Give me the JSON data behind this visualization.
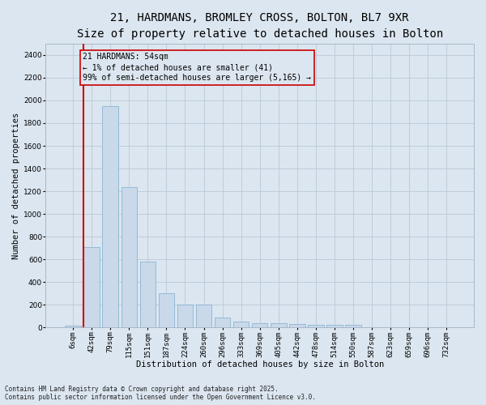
{
  "title_line1": "21, HARDMANS, BROMLEY CROSS, BOLTON, BL7 9XR",
  "title_line2": "Size of property relative to detached houses in Bolton",
  "xlabel": "Distribution of detached houses by size in Bolton",
  "ylabel": "Number of detached properties",
  "categories": [
    "6sqm",
    "42sqm",
    "79sqm",
    "115sqm",
    "151sqm",
    "187sqm",
    "224sqm",
    "260sqm",
    "296sqm",
    "333sqm",
    "369sqm",
    "405sqm",
    "442sqm",
    "478sqm",
    "514sqm",
    "550sqm",
    "587sqm",
    "623sqm",
    "659sqm",
    "696sqm",
    "732sqm"
  ],
  "values": [
    15,
    710,
    1950,
    1240,
    580,
    305,
    200,
    200,
    85,
    50,
    40,
    40,
    35,
    22,
    22,
    22,
    0,
    0,
    0,
    0,
    0
  ],
  "bar_color": "#c9d9ea",
  "bar_edge_color": "#8ab4d4",
  "grid_color": "#bcc8d8",
  "background_color": "#dce6f0",
  "vline_x_index": 1,
  "vline_color": "#cc0000",
  "annotation_box_text": "21 HARDMANS: 54sqm\n← 1% of detached houses are smaller (41)\n99% of semi-detached houses are larger (5,165) →",
  "footnote": "Contains HM Land Registry data © Crown copyright and database right 2025.\nContains public sector information licensed under the Open Government Licence v3.0.",
  "ylim": [
    0,
    2500
  ],
  "yticks": [
    0,
    200,
    400,
    600,
    800,
    1000,
    1200,
    1400,
    1600,
    1800,
    2000,
    2200,
    2400
  ],
  "fig_width": 6.0,
  "fig_height": 5.0,
  "title_fontsize": 10,
  "subtitle_fontsize": 9,
  "axis_label_fontsize": 7.5,
  "tick_fontsize": 6.5,
  "annot_fontsize": 7,
  "footnote_fontsize": 5.5
}
